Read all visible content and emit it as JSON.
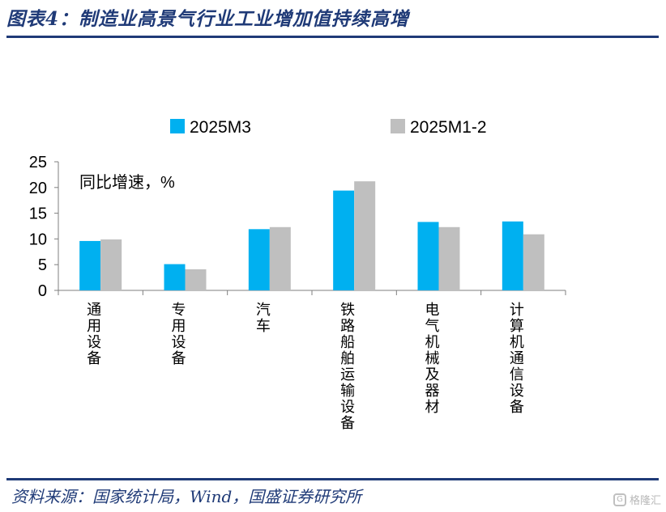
{
  "header": {
    "title": "图表4：制造业高景气行业工业增加值持续高增"
  },
  "footer": {
    "source": "资料来源：国家统计局，Wind，国盛证券研究所"
  },
  "watermark": {
    "label": "格隆汇",
    "icon": "G"
  },
  "colors": {
    "series_1": "#00b0f0",
    "series_2": "#bfbfbf",
    "brand": "#1f3a77"
  },
  "chart_data": {
    "type": "bar",
    "title": "",
    "ylabel": "同比增速，%",
    "ylim": [
      0,
      25
    ],
    "yticks": [
      0,
      5,
      10,
      15,
      20,
      25
    ],
    "grid": false,
    "legend_position": "top",
    "categories": [
      "通用设备",
      "专用设备",
      "汽车",
      "铁路船舶运输设备",
      "电气机械及器材",
      "计算机通信设备"
    ],
    "series": [
      {
        "name": "2025M3",
        "color": "#00b0f0",
        "values": [
          9.6,
          5.1,
          11.9,
          19.4,
          13.3,
          13.4
        ]
      },
      {
        "name": "2025M1-2",
        "color": "#bfbfbf",
        "values": [
          9.9,
          4.1,
          12.3,
          21.2,
          12.3,
          10.9
        ]
      }
    ]
  }
}
